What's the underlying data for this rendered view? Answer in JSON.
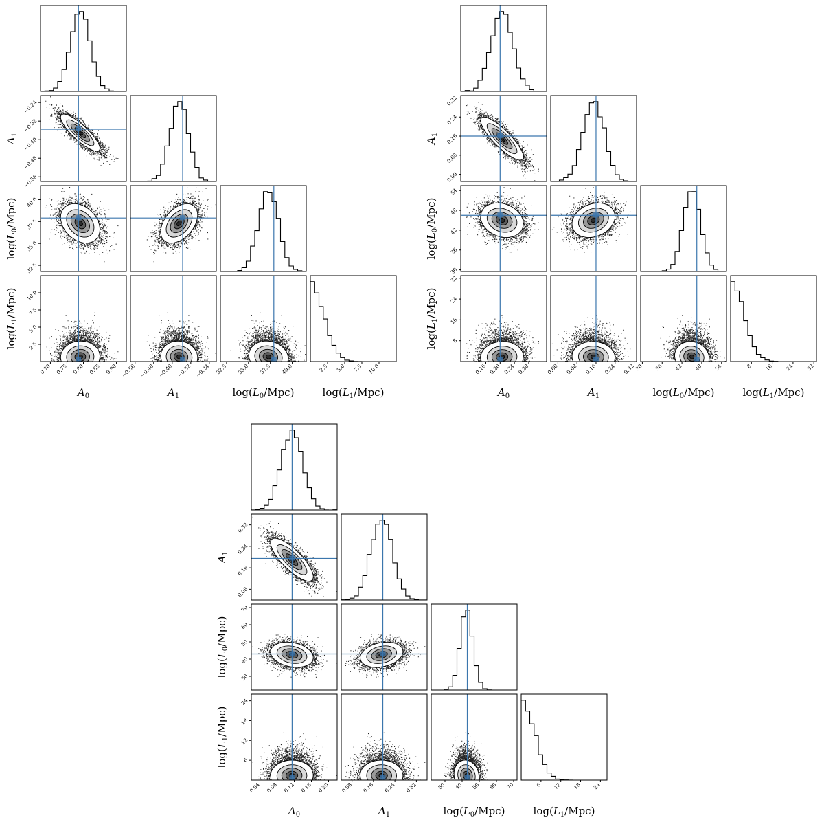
{
  "labels": {
    "A0": {
      "base": "A",
      "sub": "0",
      "text": "A0"
    },
    "A1": {
      "base": "A",
      "sub": "1",
      "text": "A1"
    },
    "logL0": {
      "pre": "log(",
      "base": "L",
      "sub": "0",
      "post": "/Mpc)",
      "text": "log(L0/Mpc)"
    },
    "logL1": {
      "pre": "log(",
      "base": "L",
      "sub": "1",
      "post": "/Mpc)",
      "text": "log(L1/Mpc)"
    }
  },
  "colors": {
    "truth": "#3b76ad",
    "hist": "#000000",
    "points": "#000000"
  },
  "chart_data": [
    {
      "type": "corner",
      "parameters": [
        "A0",
        "A1",
        "logL0",
        "logL1"
      ],
      "truths": {
        "A0": 0.785,
        "A1": -0.355,
        "logL0": 37.9,
        "logL1": null
      },
      "ranges": {
        "A0": [
          0.67,
          0.93
        ],
        "A1": [
          -0.58,
          -0.21
        ],
        "logL0": [
          31.8,
          41.6
        ],
        "logL1": [
          0,
          12.5
        ]
      },
      "ticks": {
        "A0": [
          0.7,
          0.75,
          0.8,
          0.85,
          0.9
        ],
        "A1": [
          -0.56,
          -0.48,
          -0.4,
          -0.32,
          -0.24
        ],
        "logL0": [
          32.5,
          35.0,
          37.5,
          40.0
        ],
        "logL1": [
          2.5,
          5.0,
          7.5,
          10.0
        ]
      },
      "tick_labels": {
        "A0": [
          "0.70",
          "0.75",
          "0.80",
          "0.85",
          "0.90"
        ],
        "A1": [
          "−0.56",
          "−0.48",
          "−0.40",
          "−0.32",
          "−0.24"
        ],
        "logL0": [
          "32.5",
          "35.0",
          "37.5",
          "40.0"
        ],
        "logL1": [
          "2.5",
          "5.0",
          "7.5",
          "10.0"
        ]
      },
      "posterior": {
        "mean": {
          "A0": 0.79,
          "A1": -0.37,
          "logL0": 37.3,
          "logL1": 1.5
        },
        "sd": {
          "A0": 0.03,
          "A1": 0.04,
          "logL0": 1.1,
          "logL1": 1.7
        },
        "corr_A0_A1": -0.85,
        "corr_A0_logL0": -0.3,
        "corr_A1_logL0": 0.3
      }
    },
    {
      "type": "corner",
      "parameters": [
        "A0",
        "A1",
        "logL0",
        "logL1"
      ],
      "truths": {
        "A0": 0.2,
        "A1": 0.16,
        "logL0": 46.5,
        "logL1": null
      },
      "ranges": {
        "A0": [
          0.09,
          0.33
        ],
        "A1": [
          -0.03,
          0.33
        ],
        "logL0": [
          29.5,
          55.5
        ],
        "logL1": [
          0,
          33
        ]
      },
      "ticks": {
        "A0": [
          0.16,
          0.2,
          0.24,
          0.28
        ],
        "A1": [
          0.0,
          0.08,
          0.16,
          0.24,
          0.32
        ],
        "logL0": [
          30,
          36,
          42,
          48,
          54
        ],
        "logL1": [
          8,
          16,
          24,
          32
        ]
      },
      "tick_labels": {
        "A0": [
          "0.16",
          "0.20",
          "0.24",
          "0.28"
        ],
        "A1": [
          "0.00",
          "0.08",
          "0.16",
          "0.24",
          "0.32"
        ],
        "logL0": [
          "30",
          "36",
          "42",
          "48",
          "54"
        ],
        "logL1": [
          "8",
          "16",
          "24",
          "32"
        ]
      },
      "posterior": {
        "mean": {
          "A0": 0.205,
          "A1": 0.15,
          "logL0": 45.0,
          "logL1": 4.0
        },
        "sd": {
          "A0": 0.03,
          "A1": 0.045,
          "logL0": 2.8,
          "logL1": 4.5
        },
        "corr_A0_A1": -0.85,
        "corr_A0_logL0": -0.2,
        "corr_A1_logL0": 0.1
      }
    },
    {
      "type": "corner",
      "parameters": [
        "A0",
        "A1",
        "logL0",
        "logL1"
      ],
      "truths": {
        "A0": 0.115,
        "A1": 0.195,
        "logL0": 43.0,
        "logL1": null
      },
      "ranges": {
        "A0": [
          0.02,
          0.22
        ],
        "A1": [
          0.04,
          0.36
        ],
        "logL0": [
          22,
          72
        ],
        "logL1": [
          0,
          26
        ]
      },
      "ticks": {
        "A0": [
          0.04,
          0.08,
          0.12,
          0.16,
          0.2
        ],
        "A1": [
          0.08,
          0.16,
          0.24,
          0.32
        ],
        "logL0": [
          30,
          40,
          50,
          60,
          70
        ],
        "logL1": [
          6,
          12,
          18,
          24
        ]
      },
      "tick_labels": {
        "A0": [
          "0.04",
          "0.08",
          "0.12",
          "0.16",
          "0.20"
        ],
        "A1": [
          "0.08",
          "0.16",
          "0.24",
          "0.32"
        ],
        "logL0": [
          "30",
          "40",
          "50",
          "60",
          "70"
        ],
        "logL1": [
          "6",
          "12",
          "18",
          "24"
        ]
      },
      "posterior": {
        "mean": {
          "A0": 0.115,
          "A1": 0.19,
          "logL0": 42.5,
          "logL1": 3.0
        },
        "sd": {
          "A0": 0.025,
          "A1": 0.04,
          "logL0": 4.0,
          "logL1": 3.5
        },
        "corr_A0_A1": -0.8,
        "corr_A0_logL0": -0.2,
        "corr_A1_logL0": 0.1
      }
    }
  ]
}
